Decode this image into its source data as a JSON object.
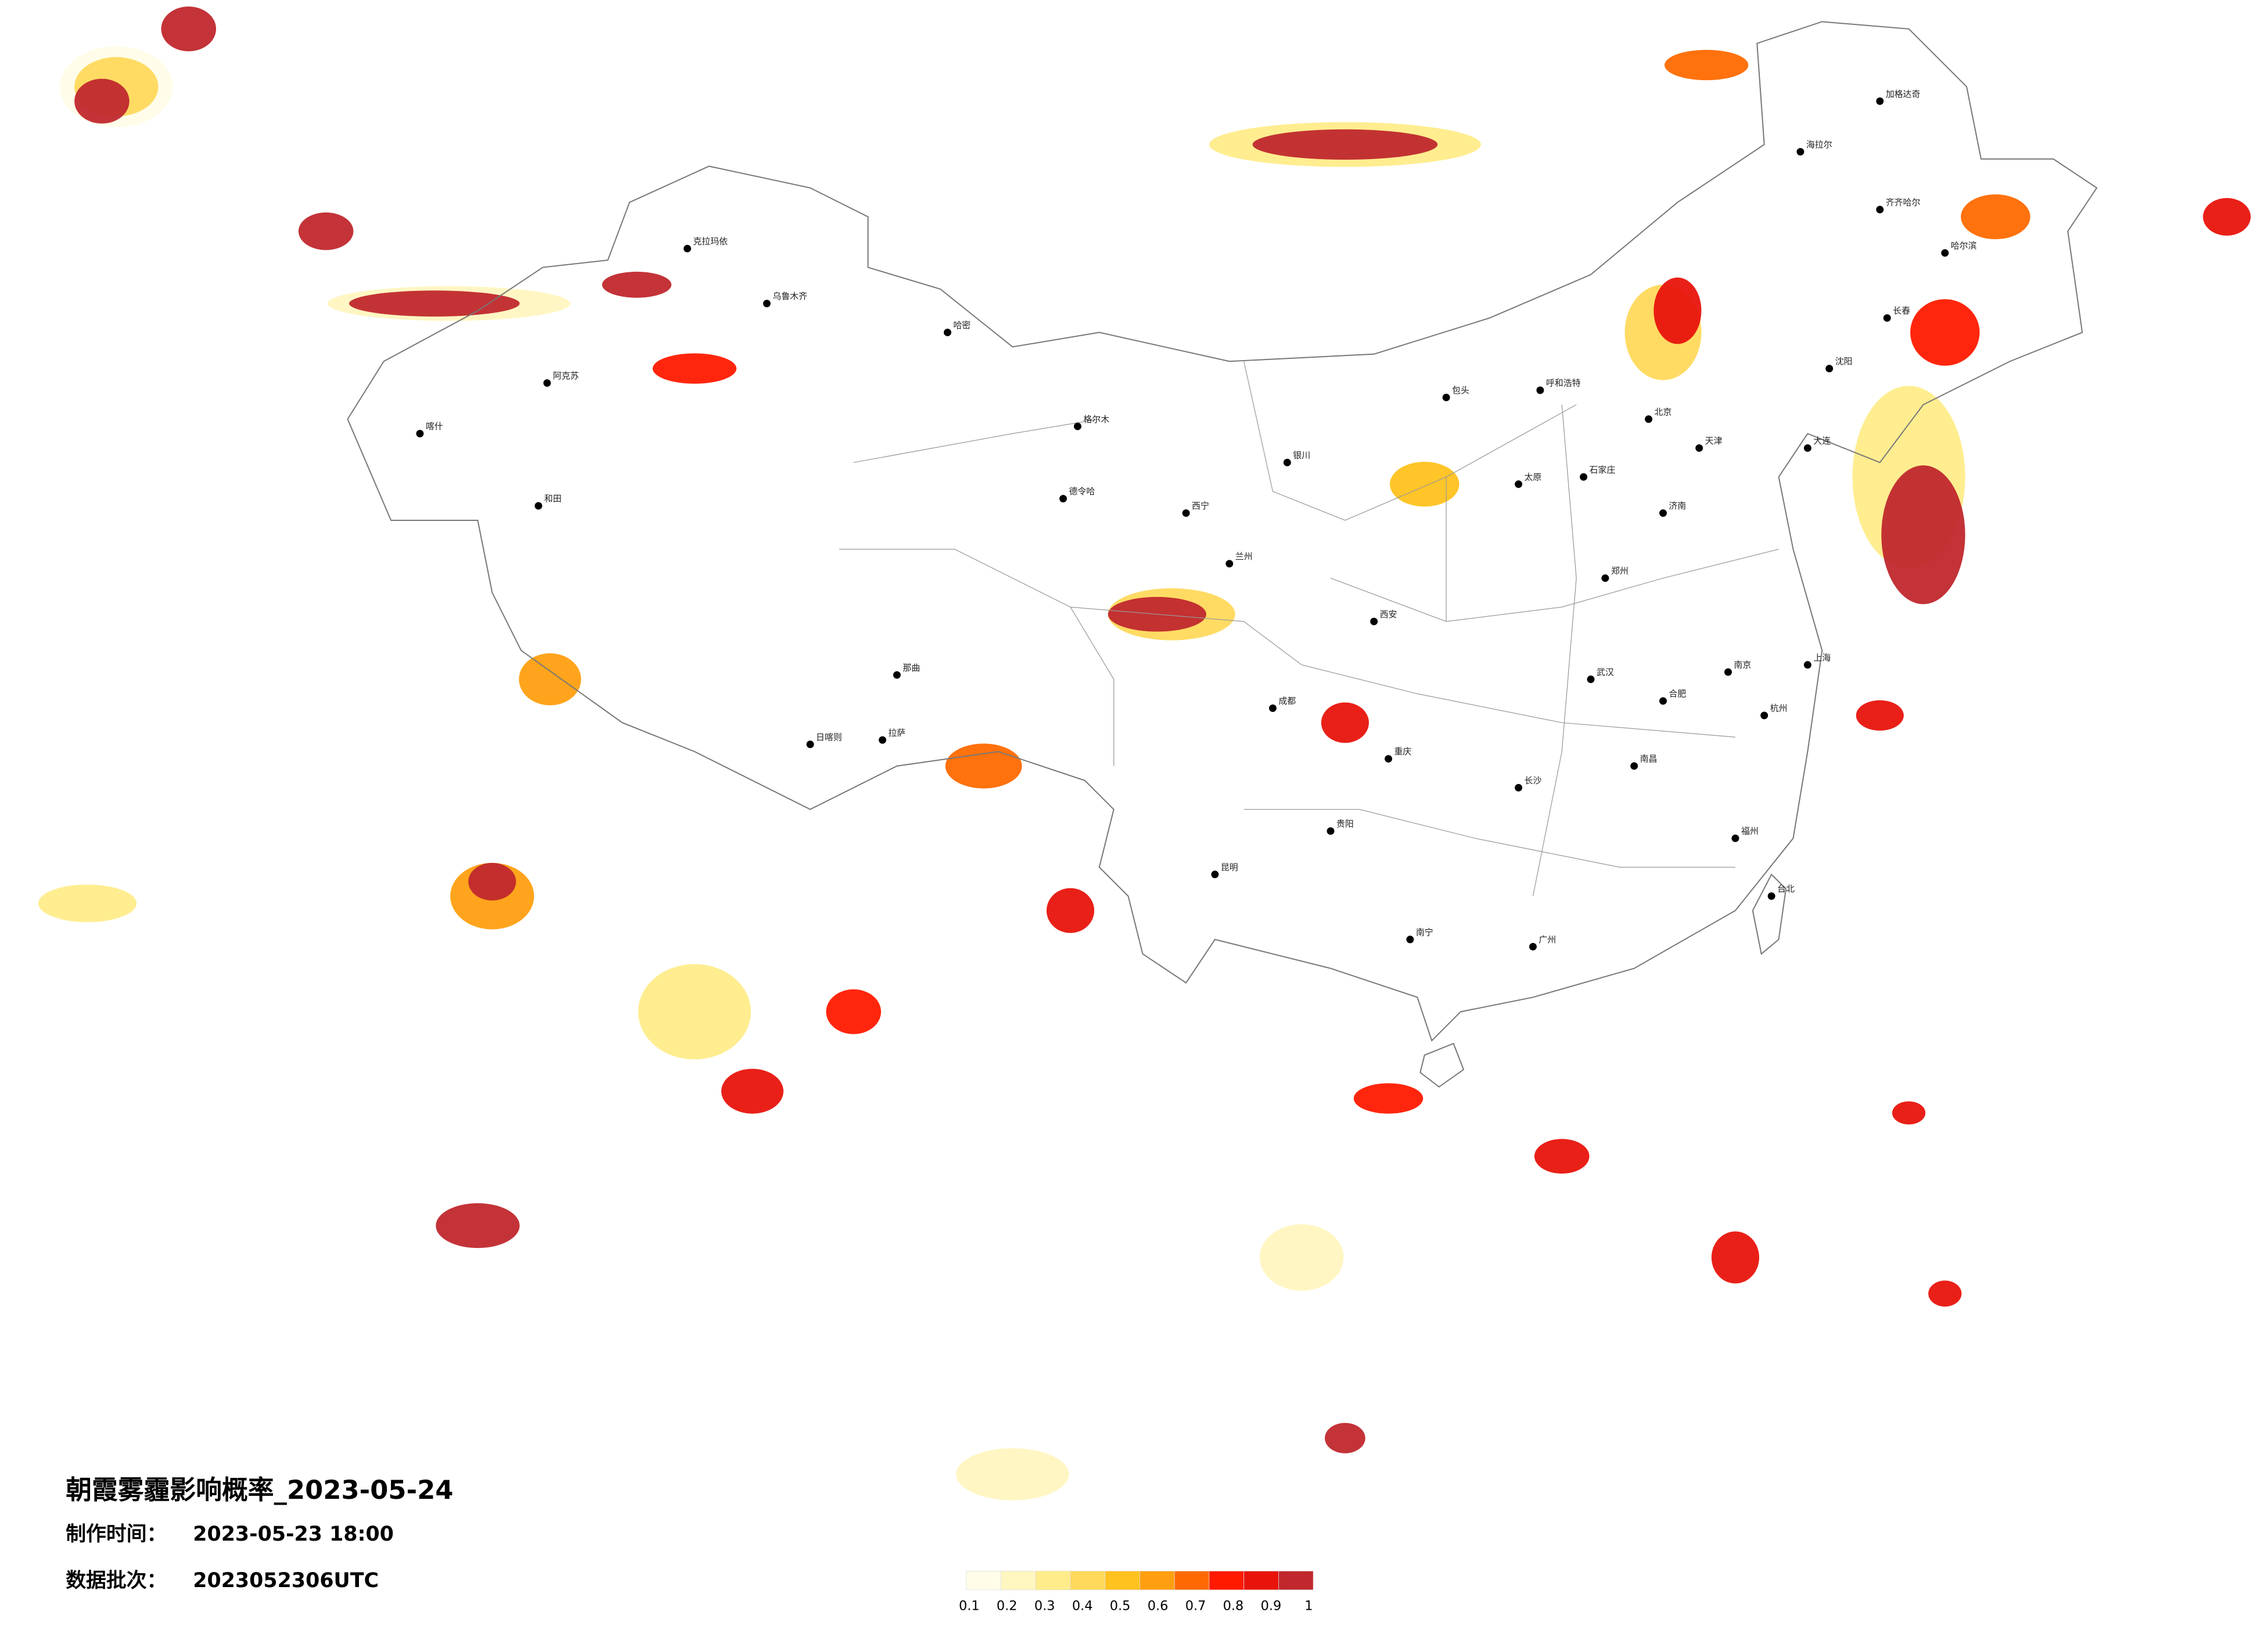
{
  "header": {
    "title": "朝霞雾霾影响概率_2023-05-24",
    "made_label": "制作时间：",
    "made_time": "2023-05-23 18:00",
    "batch_label": "数据批次：",
    "batch": "2023052306UTC"
  },
  "legend": {
    "colors": [
      "#fffde8",
      "#fff6c0",
      "#ffec8a",
      "#ffd95c",
      "#ffc21e",
      "#ff9f10",
      "#ff6a00",
      "#ff1a00",
      "#e8140c",
      "#c0282d"
    ],
    "labels": [
      0.1,
      0.2,
      0.3,
      0.4,
      0.5,
      0.6,
      0.7,
      0.8,
      0.9,
      1
    ]
  },
  "cities": [
    "克拉玛依",
    "乌鲁木齐",
    "哈密",
    "阿克苏",
    "和田",
    "喀什",
    "格尔木",
    "德令哈",
    "拉萨",
    "日喀则",
    "那曲",
    "西宁",
    "兰州",
    "银川",
    "呼和浩特",
    "包头",
    "北京",
    "天津",
    "石家庄",
    "太原",
    "济南",
    "郑州",
    "西安",
    "成都",
    "重庆",
    "贵阳",
    "昆明",
    "南宁",
    "广州",
    "长沙",
    "武汉",
    "南昌",
    "福州",
    "杭州",
    "上海",
    "南京",
    "合肥",
    "哈尔滨",
    "长春",
    "沈阳",
    "大连",
    "海拉尔",
    "齐齐哈尔",
    "加格达奇",
    "台北"
  ]
}
